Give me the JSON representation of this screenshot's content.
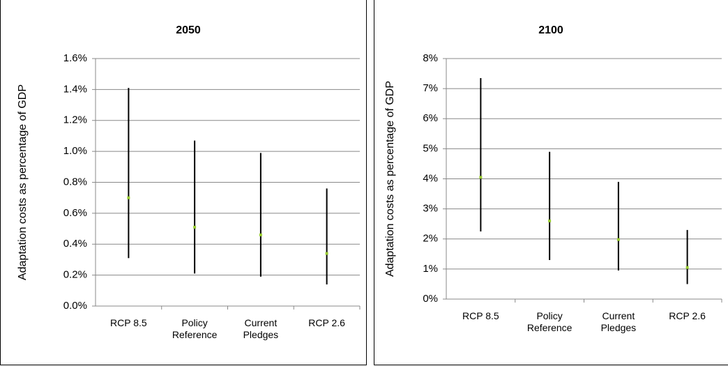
{
  "chart_data": [
    {
      "type": "range",
      "title": "2050",
      "y_label": "Adaptation costs as percentage of GDP",
      "categories": [
        "RCP 8.5",
        "Policy Reference",
        "Current Pledges",
        "RCP 2.6"
      ],
      "low": [
        0.31,
        0.21,
        0.19,
        0.14
      ],
      "high": [
        1.41,
        1.07,
        0.99,
        0.76
      ],
      "values": [
        0.7,
        0.51,
        0.46,
        0.34
      ],
      "color": "#000000",
      "marker_color": "#9acd32",
      "ylim": [
        0,
        1.6
      ],
      "yticks": [
        {
          "value": 0,
          "label": "0.0%"
        },
        {
          "value": 0.2,
          "label": "0.2%"
        },
        {
          "value": 0.4,
          "label": "0.4%"
        },
        {
          "value": 0.6,
          "label": "0.6%"
        },
        {
          "value": 0.8,
          "label": "0.8%"
        },
        {
          "value": 1.0,
          "label": "1.0%"
        },
        {
          "value": 1.2,
          "label": "1.2%"
        },
        {
          "value": 1.4,
          "label": "1.4%"
        },
        {
          "value": 1.6,
          "label": "1.6%"
        }
      ],
      "grid": true
    },
    {
      "type": "range",
      "title": "2100",
      "y_label": "Adaptation costs as percentage of GDP",
      "categories": [
        "RCP 8.5",
        "Policy Reference",
        "Current Pledges",
        "RCP 2.6"
      ],
      "low": [
        2.25,
        1.3,
        0.95,
        0.5
      ],
      "high": [
        7.35,
        4.9,
        3.9,
        2.3
      ],
      "values": [
        4.05,
        2.6,
        1.98,
        1.05
      ],
      "color": "#000000",
      "marker_color": "#9acd32",
      "ylim": [
        0,
        8
      ],
      "yticks": [
        {
          "value": 0,
          "label": "0%"
        },
        {
          "value": 1,
          "label": "1%"
        },
        {
          "value": 2,
          "label": "2%"
        },
        {
          "value": 3,
          "label": "3%"
        },
        {
          "value": 4,
          "label": "4%"
        },
        {
          "value": 5,
          "label": "5%"
        },
        {
          "value": 6,
          "label": "6%"
        },
        {
          "value": 7,
          "label": "7%"
        },
        {
          "value": 8,
          "label": "8%"
        }
      ],
      "grid": true
    }
  ]
}
